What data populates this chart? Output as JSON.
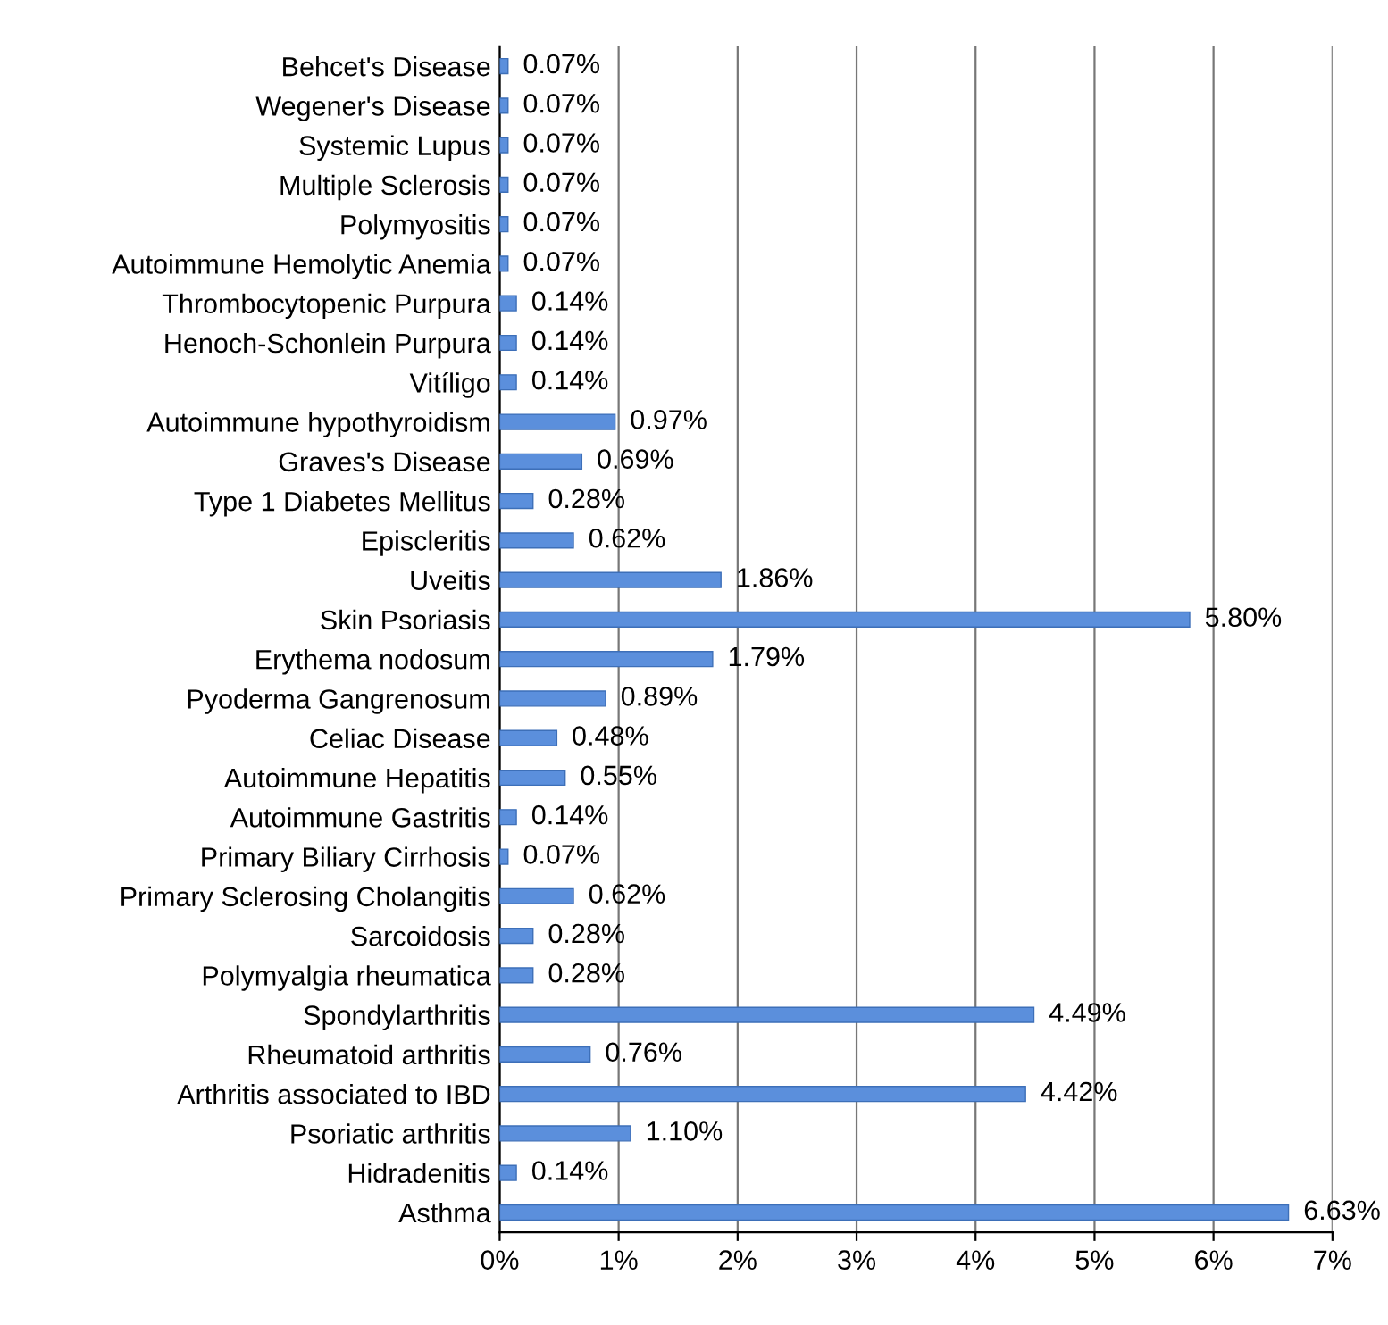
{
  "chart_data": {
    "type": "bar",
    "orientation": "horizontal",
    "categories": [
      "Behcet's Disease",
      "Wegener's Disease",
      "Systemic Lupus",
      "Multiple Sclerosis",
      "Polymyositis",
      "Autoimmune Hemolytic Anemia",
      "Thrombocytopenic Purpura",
      "Henoch-Schonlein Purpura",
      "Vitíligo",
      "Autoimmune hypothyroidism",
      "Graves's Disease",
      "Type 1 Diabetes Mellitus",
      "Episcleritis",
      "Uveitis",
      "Skin Psoriasis",
      "Erythema nodosum",
      "Pyoderma Gangrenosum",
      "Celiac Disease",
      "Autoimmune Hepatitis",
      "Autoimmune Gastritis",
      "Primary Biliary Cirrhosis",
      "Primary Sclerosing Cholangitis",
      "Sarcoidosis",
      "Polymyalgia rheumatica",
      "Spondylarthritis",
      "Rheumatoid arthritis",
      "Arthritis associated to IBD",
      "Psoriatic arthritis",
      "Hidradenitis",
      "Asthma"
    ],
    "values": [
      0.07,
      0.07,
      0.07,
      0.07,
      0.07,
      0.07,
      0.14,
      0.14,
      0.14,
      0.97,
      0.69,
      0.28,
      0.62,
      1.86,
      5.8,
      1.79,
      0.89,
      0.48,
      0.55,
      0.14,
      0.07,
      0.62,
      0.28,
      0.28,
      4.49,
      0.76,
      4.42,
      1.1,
      0.14,
      6.63
    ],
    "value_labels": [
      "0.07%",
      "0.07%",
      "0.07%",
      "0.07%",
      "0.07%",
      "0.07%",
      "0.14%",
      "0.14%",
      "0.14%",
      "0.97%",
      "0.69%",
      "0.28%",
      "0.62%",
      "1.86%",
      "5.80%",
      "1.79%",
      "0.89%",
      "0.48%",
      "0.55%",
      "0.14%",
      "0.07%",
      "0.62%",
      "0.28%",
      "0.28%",
      "4.49%",
      "0.76%",
      "4.42%",
      "1.10%",
      "0.14%",
      "6.63%"
    ],
    "color": "#5b8fdc",
    "xlim": [
      0,
      7
    ],
    "xticks": [
      {
        "value": 0,
        "label": "0%"
      },
      {
        "value": 1,
        "label": "1%"
      },
      {
        "value": 2,
        "label": "2%"
      },
      {
        "value": 3,
        "label": "3%"
      },
      {
        "value": 4,
        "label": "4%"
      },
      {
        "value": 5,
        "label": "5%"
      },
      {
        "value": 6,
        "label": "6%"
      },
      {
        "value": 7,
        "label": "7%"
      }
    ],
    "grid": "x",
    "legend": false
  }
}
